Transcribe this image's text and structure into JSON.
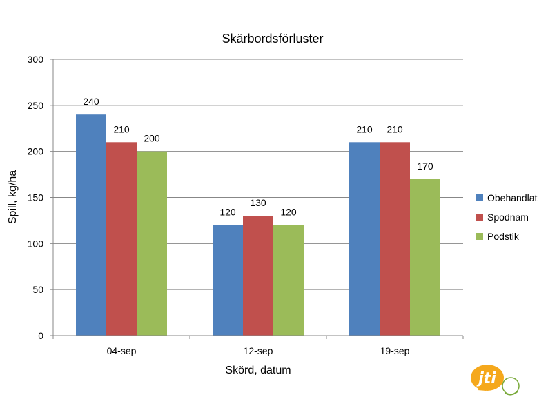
{
  "chart_data": {
    "type": "bar",
    "title": "Skärbordsförluster",
    "xlabel": "Skörd, datum",
    "ylabel": "Spill, kg/ha",
    "categories": [
      "04-sep",
      "12-sep",
      "19-sep"
    ],
    "ylim": [
      0,
      300
    ],
    "yticks": [
      0,
      50,
      100,
      150,
      200,
      250,
      300
    ],
    "grid": true,
    "legend_position": "right",
    "series": [
      {
        "name": "Obehandlat",
        "values": [
          240,
          120,
          210
        ],
        "color": "#4F81BD"
      },
      {
        "name": "Spodnam",
        "values": [
          210,
          130,
          210
        ],
        "color": "#C0504D"
      },
      {
        "name": "Podstik",
        "values": [
          200,
          120,
          170
        ],
        "color": "#9BBB59"
      }
    ]
  },
  "logo": {
    "text": "jti",
    "color": "#F5A81C",
    "icon": "jti-logo"
  }
}
